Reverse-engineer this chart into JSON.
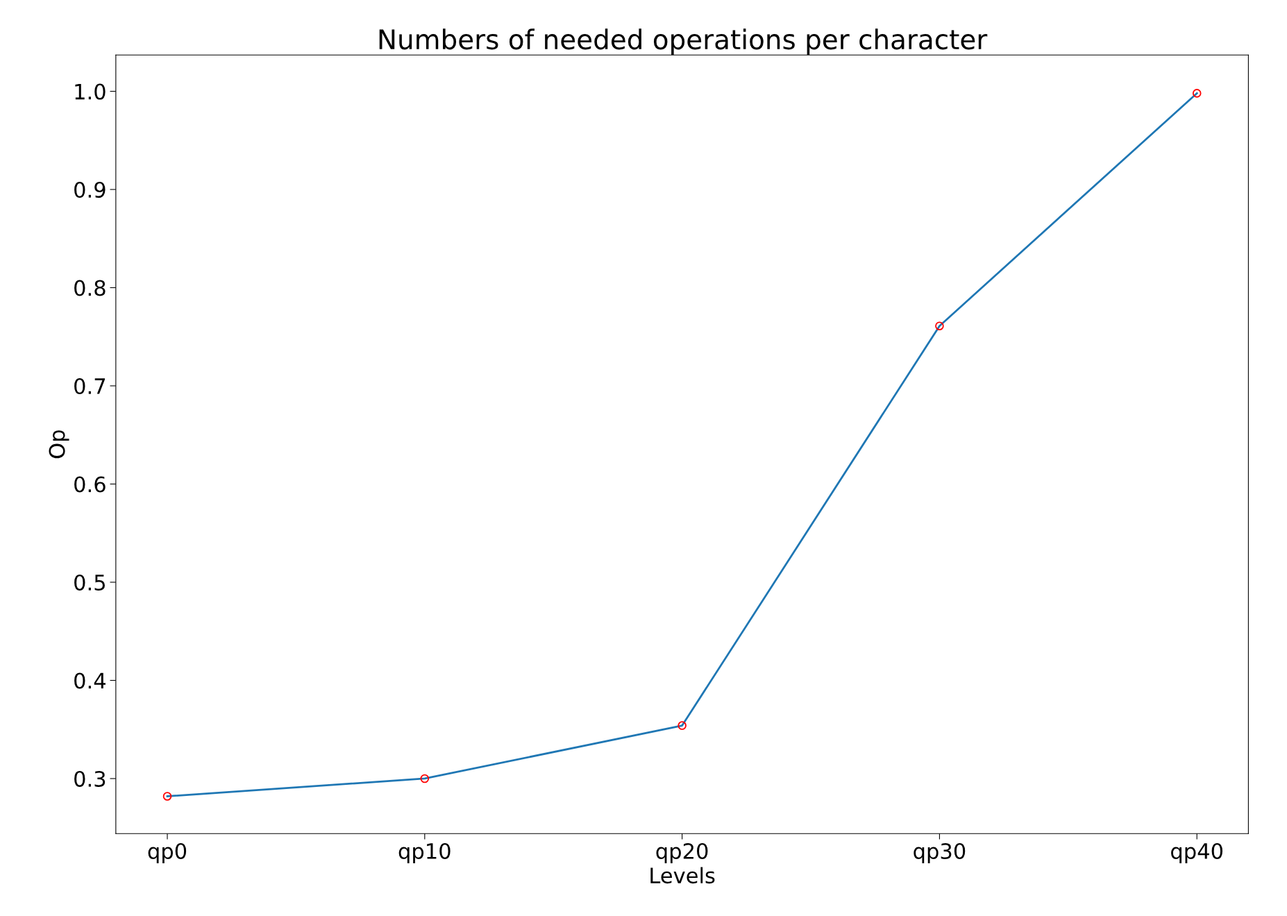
{
  "chart_data": {
    "type": "line",
    "title": "Numbers of needed operations per character",
    "xlabel": "Levels",
    "ylabel": "Op",
    "categories": [
      "qp0",
      "qp10",
      "qp20",
      "qp30",
      "qp40"
    ],
    "series": [
      {
        "color": "#1f77b4",
        "marker": "none",
        "values": [
          0.282,
          0.3,
          0.354,
          0.761,
          0.998
        ]
      },
      {
        "type": "scatter",
        "color": "#ff0000",
        "marker": "circle",
        "x": [
          "qp0",
          "qp10",
          "qp20",
          "qp30",
          "qp40"
        ],
        "values": [
          0.282,
          0.3,
          0.354,
          0.761,
          0.998
        ]
      }
    ],
    "ylim": [
      0.244,
      1.037
    ],
    "yticks": [
      0.3,
      0.4,
      0.5,
      0.6,
      0.7,
      0.8,
      0.9,
      {
        "value": 1.0,
        "label": "1.0"
      }
    ],
    "grid": false
  }
}
